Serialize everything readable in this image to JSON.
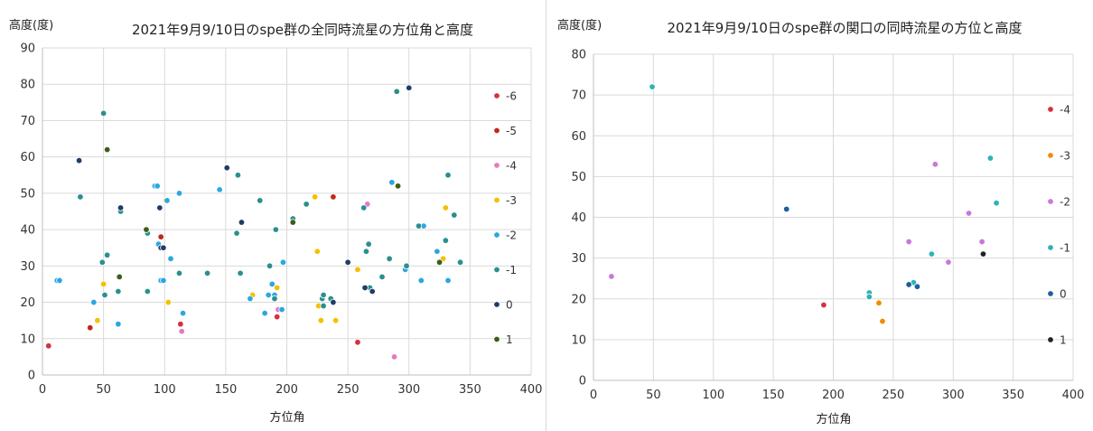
{
  "chart_data": [
    {
      "type": "scatter",
      "title": "2021年9月9/10日のspe群の全同時流星の方位角と高度",
      "ylabel": "高度(度)",
      "xlabel": "方位角",
      "xlim": [
        0,
        400
      ],
      "ylim": [
        0,
        90
      ],
      "x_ticks": [
        0,
        50,
        100,
        150,
        200,
        250,
        300,
        350,
        400
      ],
      "y_ticks": [
        0,
        10,
        20,
        30,
        40,
        50,
        60,
        70,
        80,
        90
      ],
      "grid": true,
      "legend_position": "right",
      "series": [
        {
          "name": "-6",
          "color": "#d6303f",
          "points": [
            [
              5,
              8
            ],
            [
              113,
              14
            ],
            [
              192,
              16
            ],
            [
              258,
              9
            ]
          ]
        },
        {
          "name": "-5",
          "color": "#c0281c",
          "points": [
            [
              39,
              13
            ],
            [
              97,
              38
            ],
            [
              238,
              49
            ]
          ]
        },
        {
          "name": "-4",
          "color": "#e879c0",
          "points": [
            [
              114,
              12
            ],
            [
              193,
              18
            ],
            [
              266,
              47
            ],
            [
              288,
              5
            ]
          ]
        },
        {
          "name": "-3",
          "color": "#f5c000",
          "points": [
            [
              45,
              15
            ],
            [
              50,
              25
            ],
            [
              101,
              48
            ],
            [
              103,
              20
            ],
            [
              172,
              22
            ],
            [
              192,
              24
            ],
            [
              223,
              49
            ],
            [
              225,
              34
            ],
            [
              226,
              19
            ],
            [
              228,
              15
            ],
            [
              240,
              15
            ],
            [
              258,
              29
            ],
            [
              328,
              32
            ],
            [
              330,
              46
            ]
          ]
        },
        {
          "name": "-2",
          "color": "#2aa7e2",
          "points": [
            [
              12,
              26
            ],
            [
              14,
              26
            ],
            [
              42,
              20
            ],
            [
              62,
              14
            ],
            [
              92,
              52
            ],
            [
              94,
              52
            ],
            [
              95,
              36
            ],
            [
              97,
              26
            ],
            [
              99,
              26
            ],
            [
              102,
              48
            ],
            [
              105,
              32
            ],
            [
              112,
              50
            ],
            [
              115,
              17
            ],
            [
              145,
              51
            ],
            [
              170,
              21
            ],
            [
              182,
              17
            ],
            [
              185,
              22
            ],
            [
              188,
              25
            ],
            [
              190,
              22
            ],
            [
              196,
              18
            ],
            [
              197,
              31
            ],
            [
              286,
              53
            ],
            [
              297,
              29
            ],
            [
              310,
              26
            ],
            [
              312,
              41
            ],
            [
              323,
              34
            ],
            [
              332,
              26
            ]
          ]
        },
        {
          "name": "-1",
          "color": "#2b8f8f",
          "points": [
            [
              31,
              49
            ],
            [
              49,
              31
            ],
            [
              50,
              72
            ],
            [
              51,
              22
            ],
            [
              53,
              33
            ],
            [
              62,
              23
            ],
            [
              64,
              45
            ],
            [
              86,
              23
            ],
            [
              86,
              39
            ],
            [
              112,
              28
            ],
            [
              135,
              28
            ],
            [
              159,
              39
            ],
            [
              160,
              55
            ],
            [
              162,
              28
            ],
            [
              178,
              48
            ],
            [
              186,
              30
            ],
            [
              190,
              21
            ],
            [
              191,
              40
            ],
            [
              205,
              43
            ],
            [
              216,
              47
            ],
            [
              229,
              21
            ],
            [
              230,
              22
            ],
            [
              230,
              19
            ],
            [
              236,
              21
            ],
            [
              263,
              46
            ],
            [
              265,
              34
            ],
            [
              267,
              36
            ],
            [
              268,
              24
            ],
            [
              278,
              27
            ],
            [
              284,
              32
            ],
            [
              290,
              78
            ],
            [
              298,
              30
            ],
            [
              308,
              41
            ],
            [
              330,
              37
            ],
            [
              332,
              55
            ],
            [
              337,
              44
            ],
            [
              342,
              31
            ]
          ]
        },
        {
          "name": "0",
          "color": "#1f3d6b",
          "points": [
            [
              30,
              59
            ],
            [
              64,
              46
            ],
            [
              96,
              46
            ],
            [
              97,
              35
            ],
            [
              99,
              35
            ],
            [
              151,
              57
            ],
            [
              163,
              42
            ],
            [
              238,
              20
            ],
            [
              250,
              31
            ],
            [
              264,
              24
            ],
            [
              270,
              23
            ],
            [
              300,
              79
            ]
          ]
        },
        {
          "name": "1",
          "color": "#3d5c18",
          "points": [
            [
              53,
              62
            ],
            [
              63,
              27
            ],
            [
              85,
              40
            ],
            [
              205,
              42
            ],
            [
              291,
              52
            ],
            [
              325,
              31
            ]
          ]
        }
      ]
    },
    {
      "type": "scatter",
      "title": "2021年9月9/10日のspe群の関口の同時流星の方位と高度",
      "ylabel": "高度(度)",
      "xlabel": "方位角",
      "xlim": [
        0,
        400
      ],
      "ylim": [
        0,
        80
      ],
      "x_ticks": [
        0,
        50,
        100,
        150,
        200,
        250,
        300,
        350,
        400
      ],
      "y_ticks": [
        0,
        10,
        20,
        30,
        40,
        50,
        60,
        70,
        80
      ],
      "grid": true,
      "legend_position": "right",
      "series": [
        {
          "name": "-4",
          "color": "#d6303f",
          "points": [
            [
              192,
              18.5
            ]
          ]
        },
        {
          "name": "-3",
          "color": "#f28c00",
          "points": [
            [
              238,
              19
            ],
            [
              241,
              14.5
            ]
          ]
        },
        {
          "name": "-2",
          "color": "#c879d8",
          "points": [
            [
              15,
              25.5
            ],
            [
              263,
              34
            ],
            [
              285,
              53
            ],
            [
              296,
              29
            ],
            [
              313,
              41
            ],
            [
              324,
              34
            ]
          ]
        },
        {
          "name": "-1",
          "color": "#2fb3b6",
          "points": [
            [
              49,
              72
            ],
            [
              230,
              21.5
            ],
            [
              230,
              20.5
            ],
            [
              267,
              24
            ],
            [
              282,
              31
            ],
            [
              331,
              54.5
            ],
            [
              336,
              43.5
            ]
          ]
        },
        {
          "name": "0",
          "color": "#1f5f9e",
          "points": [
            [
              161,
              42
            ],
            [
              263,
              23.5
            ],
            [
              270,
              23
            ]
          ]
        },
        {
          "name": "1",
          "color": "#222222",
          "points": [
            [
              325,
              31
            ]
          ]
        }
      ]
    }
  ]
}
